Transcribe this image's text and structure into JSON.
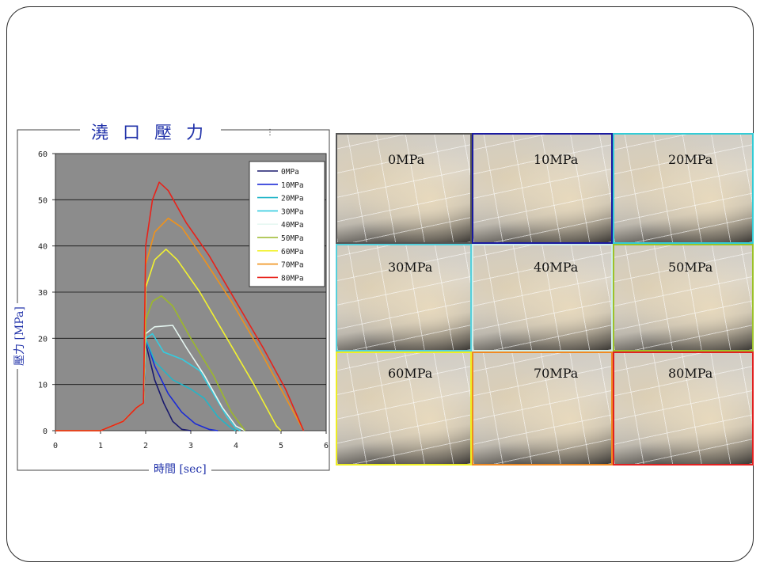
{
  "chart_data": {
    "type": "line",
    "title": "澆口壓力",
    "xlabel": "時間 [sec]",
    "ylabel": "壓力 [MPa]",
    "xlim": [
      0,
      6
    ],
    "ylim": [
      0,
      60
    ],
    "x_ticks": [
      "0",
      "1",
      "2",
      "3",
      "4",
      "5",
      "6"
    ],
    "y_ticks": [
      "0",
      "10",
      "20",
      "30",
      "40",
      "50",
      "60"
    ],
    "grid": "horizontal",
    "legend_position": "top-right",
    "background_color": "#8c8c8c",
    "series": [
      {
        "name": "0MPa",
        "color": "#1a1a6e",
        "points": [
          [
            0,
            0
          ],
          [
            1,
            0
          ],
          [
            1.5,
            2
          ],
          [
            1.8,
            5
          ],
          [
            1.95,
            6
          ],
          [
            2.0,
            19
          ],
          [
            2.2,
            11
          ],
          [
            2.4,
            6
          ],
          [
            2.6,
            2
          ],
          [
            2.8,
            0.3
          ],
          [
            3.0,
            0
          ]
        ]
      },
      {
        "name": "10MPa",
        "color": "#1a2ad6",
        "points": [
          [
            0,
            0
          ],
          [
            1,
            0
          ],
          [
            1.5,
            2
          ],
          [
            1.8,
            5
          ],
          [
            1.95,
            6
          ],
          [
            2.0,
            20
          ],
          [
            2.2,
            14
          ],
          [
            2.5,
            8
          ],
          [
            2.8,
            4
          ],
          [
            3.1,
            1.5
          ],
          [
            3.4,
            0.3
          ],
          [
            3.6,
            0
          ]
        ]
      },
      {
        "name": "20MPa",
        "color": "#22b6c8",
        "points": [
          [
            0,
            0
          ],
          [
            1,
            0
          ],
          [
            1.5,
            2
          ],
          [
            1.8,
            5
          ],
          [
            1.95,
            6
          ],
          [
            2.0,
            20
          ],
          [
            2.2,
            15
          ],
          [
            2.6,
            11
          ],
          [
            3.0,
            9
          ],
          [
            3.3,
            7
          ],
          [
            3.6,
            3
          ],
          [
            3.9,
            0.5
          ],
          [
            4.0,
            0
          ]
        ]
      },
      {
        "name": "30MPa",
        "color": "#33cce0",
        "points": [
          [
            0,
            0
          ],
          [
            1,
            0
          ],
          [
            1.5,
            2
          ],
          [
            1.8,
            5
          ],
          [
            1.95,
            6
          ],
          [
            2.0,
            20
          ],
          [
            2.15,
            21
          ],
          [
            2.4,
            17
          ],
          [
            2.8,
            15.5
          ],
          [
            3.2,
            13
          ],
          [
            3.5,
            8
          ],
          [
            3.8,
            3
          ],
          [
            4.0,
            0.5
          ],
          [
            4.1,
            0
          ]
        ]
      },
      {
        "name": "40MPa",
        "color": "#e6f7f2",
        "points": [
          [
            0,
            0
          ],
          [
            1,
            0
          ],
          [
            1.5,
            2
          ],
          [
            1.8,
            5
          ],
          [
            1.95,
            6
          ],
          [
            2.0,
            21
          ],
          [
            2.2,
            22.5
          ],
          [
            2.6,
            22.8
          ],
          [
            2.9,
            18
          ],
          [
            3.3,
            12
          ],
          [
            3.7,
            5
          ],
          [
            4.0,
            1
          ],
          [
            4.2,
            0
          ]
        ]
      },
      {
        "name": "50MPa",
        "color": "#9cb82a",
        "points": [
          [
            0,
            0
          ],
          [
            1,
            0
          ],
          [
            1.5,
            2
          ],
          [
            1.8,
            5
          ],
          [
            1.95,
            6
          ],
          [
            2.0,
            24
          ],
          [
            2.15,
            28
          ],
          [
            2.35,
            29.2
          ],
          [
            2.6,
            27
          ],
          [
            3.0,
            20
          ],
          [
            3.5,
            12
          ],
          [
            3.9,
            4
          ],
          [
            4.2,
            0
          ]
        ]
      },
      {
        "name": "60MPa",
        "color": "#f2f230",
        "points": [
          [
            0,
            0
          ],
          [
            1,
            0
          ],
          [
            1.5,
            2
          ],
          [
            1.8,
            5
          ],
          [
            1.95,
            6
          ],
          [
            2.0,
            31
          ],
          [
            2.2,
            37
          ],
          [
            2.45,
            39.3
          ],
          [
            2.7,
            37
          ],
          [
            3.2,
            30
          ],
          [
            3.8,
            20
          ],
          [
            4.4,
            10
          ],
          [
            4.9,
            1
          ],
          [
            5.0,
            0
          ]
        ]
      },
      {
        "name": "70MPa",
        "color": "#f0921a",
        "points": [
          [
            0,
            0
          ],
          [
            1,
            0
          ],
          [
            1.5,
            2
          ],
          [
            1.8,
            5
          ],
          [
            1.95,
            6
          ],
          [
            2.0,
            36
          ],
          [
            2.2,
            43
          ],
          [
            2.5,
            46
          ],
          [
            2.8,
            44
          ],
          [
            3.3,
            37
          ],
          [
            3.9,
            28
          ],
          [
            4.5,
            18
          ],
          [
            5.0,
            9
          ],
          [
            5.5,
            0
          ]
        ]
      },
      {
        "name": "80MPa",
        "color": "#e8221a",
        "points": [
          [
            0,
            0
          ],
          [
            1,
            0
          ],
          [
            1.5,
            2
          ],
          [
            1.8,
            5
          ],
          [
            1.95,
            6
          ],
          [
            2.0,
            40
          ],
          [
            2.15,
            50
          ],
          [
            2.3,
            53.8
          ],
          [
            2.5,
            52
          ],
          [
            2.9,
            45
          ],
          [
            3.4,
            38
          ],
          [
            4.0,
            28
          ],
          [
            4.6,
            18
          ],
          [
            5.1,
            9
          ],
          [
            5.5,
            0
          ]
        ]
      }
    ]
  },
  "photos": [
    {
      "label": "0MPa",
      "color": "#555555"
    },
    {
      "label": "10MPa",
      "color": "#1a1aa0"
    },
    {
      "label": "20MPa",
      "color": "#33ccd6"
    },
    {
      "label": "30MPa",
      "color": "#55d0dc"
    },
    {
      "label": "40MPa",
      "color": "#cfeeea"
    },
    {
      "label": "50MPa",
      "color": "#9cc22a"
    },
    {
      "label": "60MPa",
      "color": "#eeee22"
    },
    {
      "label": "70MPa",
      "color": "#f08a22"
    },
    {
      "label": "80MPa",
      "color": "#e22020"
    }
  ]
}
